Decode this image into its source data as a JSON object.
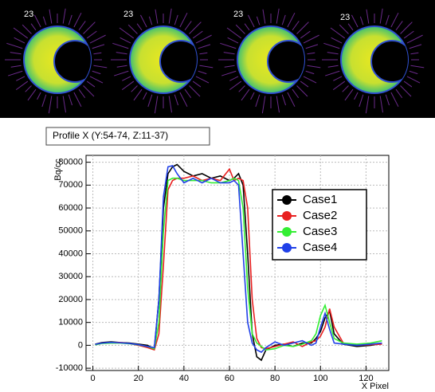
{
  "images": [
    {
      "label": "23"
    },
    {
      "label": "23"
    },
    {
      "label": "23"
    },
    {
      "label": "23"
    }
  ],
  "chart_data": {
    "type": "line",
    "title": "Profile X (Y:54-74, Z:11-37)",
    "y_label": "Bq/cc",
    "x_label": "X Pixel",
    "x": [
      1,
      4,
      8,
      12,
      16,
      20,
      24,
      27,
      29,
      31,
      33,
      35,
      37,
      40,
      44,
      48,
      52,
      56,
      60,
      62,
      64,
      66,
      68,
      70,
      72,
      74,
      76,
      80,
      84,
      88,
      92,
      96,
      98,
      100,
      102,
      104,
      106,
      110,
      116,
      122,
      127
    ],
    "series": [
      {
        "name": "Case1",
        "color": "#000000",
        "values": [
          500,
          1200,
          1500,
          1200,
          1000,
          500,
          0,
          -1500,
          20000,
          60000,
          75000,
          78000,
          79000,
          76000,
          74000,
          75000,
          73000,
          74000,
          72000,
          73000,
          75000,
          70000,
          40000,
          5000,
          -5000,
          -6500,
          -2000,
          0,
          500,
          -500,
          1000,
          1000,
          3000,
          6000,
          12000,
          15000,
          5000,
          500,
          -500,
          0,
          800
        ]
      },
      {
        "name": "Case2",
        "color": "#e82020",
        "values": [
          300,
          1000,
          1200,
          1200,
          800,
          0,
          -1000,
          -2000,
          5000,
          35000,
          68000,
          72000,
          73000,
          73000,
          74000,
          72000,
          73000,
          72000,
          77000,
          72000,
          73000,
          72000,
          60000,
          20000,
          3000,
          -1000,
          -1500,
          -500,
          500,
          1500,
          -500,
          1500,
          2000,
          4000,
          8000,
          16000,
          8000,
          1000,
          0,
          300,
          500
        ]
      },
      {
        "name": "Case3",
        "color": "#33ee33",
        "values": [
          200,
          800,
          1000,
          1000,
          700,
          200,
          -500,
          -1500,
          10000,
          50000,
          72000,
          73000,
          73000,
          72000,
          72000,
          72000,
          71000,
          71000,
          72000,
          73000,
          72000,
          60000,
          25000,
          5000,
          1000,
          -500,
          -2000,
          -1500,
          0,
          -500,
          500,
          2000,
          5000,
          13000,
          17500,
          10000,
          3000,
          1000,
          500,
          1000,
          2000
        ]
      },
      {
        "name": "Case4",
        "color": "#2040e8",
        "values": [
          400,
          1000,
          1300,
          1100,
          800,
          300,
          -500,
          -1000,
          20000,
          65000,
          78000,
          78500,
          75000,
          71000,
          73000,
          71000,
          73000,
          71000,
          71000,
          72000,
          70000,
          40000,
          10000,
          1000,
          -2000,
          -3000,
          -1000,
          1500,
          0,
          1000,
          2000,
          0,
          1000,
          8000,
          14000,
          7000,
          1000,
          500,
          0,
          500,
          1000
        ]
      }
    ],
    "xlim": [
      -3,
      130
    ],
    "xticks": [
      0,
      20,
      40,
      60,
      80,
      100,
      120
    ],
    "ylim": [
      -11000,
      83000
    ],
    "yticks": [
      -10000,
      0,
      10000,
      20000,
      30000,
      40000,
      50000,
      60000,
      70000,
      80000
    ],
    "grid": true,
    "legend": "upper right"
  }
}
